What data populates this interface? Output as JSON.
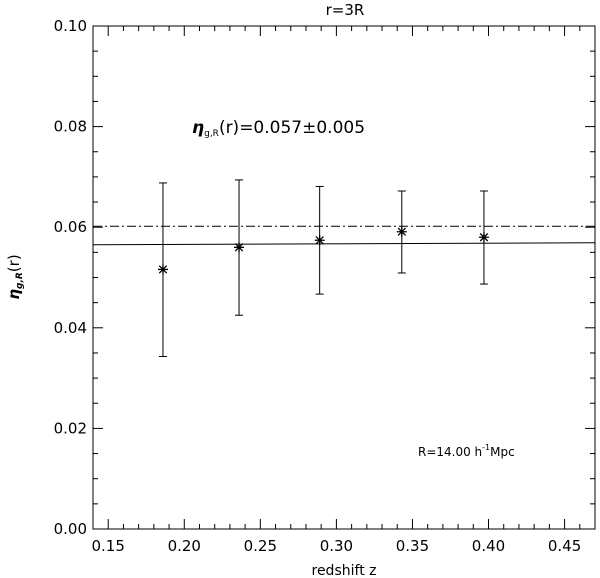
{
  "chart_data": {
    "type": "scatter",
    "title": "r=3R",
    "xlabel": "redshift z",
    "ylabel_symbol": "η",
    "ylabel_sub": "g,R",
    "ylabel_arg": "(r)",
    "xlim": [
      0.14,
      0.47
    ],
    "ylim": [
      0.0,
      0.1
    ],
    "x_ticks": [
      0.15,
      0.2,
      0.25,
      0.3,
      0.35,
      0.4,
      0.45
    ],
    "x_tick_labels": [
      "0.15",
      "0.20",
      "0.25",
      "0.30",
      "0.35",
      "0.40",
      "0.45"
    ],
    "y_ticks": [
      0.0,
      0.02,
      0.04,
      0.06,
      0.08,
      0.1
    ],
    "y_tick_labels": [
      "0.00",
      "0.02",
      "0.04",
      "0.06",
      "0.08",
      "0.10"
    ],
    "grid": false,
    "points": [
      {
        "x": 0.186,
        "y": 0.0516,
        "ylo": 0.0343,
        "yhi": 0.0688
      },
      {
        "x": 0.236,
        "y": 0.056,
        "ylo": 0.0425,
        "yhi": 0.0694
      },
      {
        "x": 0.289,
        "y": 0.0574,
        "ylo": 0.0467,
        "yhi": 0.0681
      },
      {
        "x": 0.343,
        "y": 0.0591,
        "ylo": 0.0509,
        "yhi": 0.0672
      },
      {
        "x": 0.397,
        "y": 0.058,
        "ylo": 0.0487,
        "yhi": 0.0672
      }
    ],
    "fit_line": {
      "style": "solid",
      "x": [
        0.14,
        0.47
      ],
      "y": [
        0.0565,
        0.0569
      ]
    },
    "reference_line": {
      "style": "dash-dot",
      "y": 0.0602
    },
    "annotation": {
      "symbol": "η",
      "sub": "g,R",
      "text": "(r)=0.057±0.005"
    },
    "scale_note": {
      "prefix": "R=14.00 h",
      "sup": "-1",
      "suffix": "Mpc"
    }
  }
}
